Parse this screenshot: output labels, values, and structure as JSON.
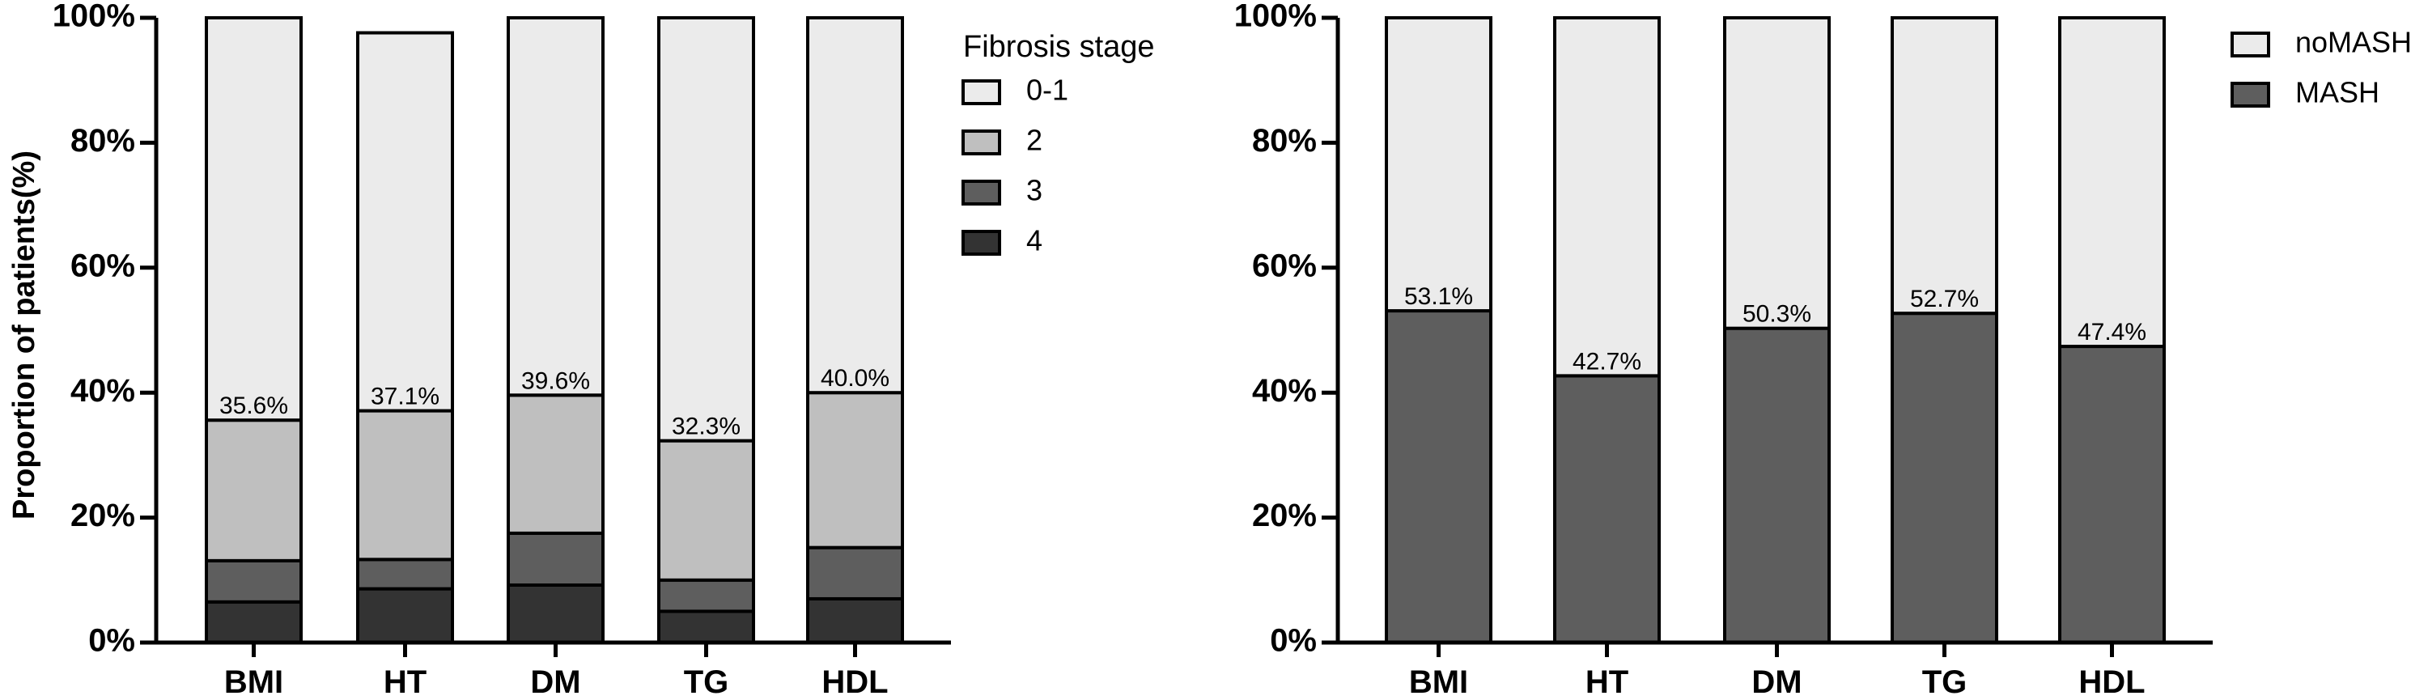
{
  "chart_data": [
    {
      "type": "bar",
      "stacked": true,
      "ylabel": "Proportion of patients(%)",
      "ylim": [
        0,
        100
      ],
      "yticks": [
        "0%",
        "20%",
        "40%",
        "60%",
        "80%",
        "100%"
      ],
      "categories": [
        "BMI",
        "HT",
        "DM",
        "TG",
        "HDL"
      ],
      "legend": {
        "title": "Fibrosis stage",
        "position": "right"
      },
      "series": [
        {
          "name": "4",
          "color": "#333333",
          "values": [
            6.5,
            8.6,
            9.2,
            5.0,
            7.0
          ]
        },
        {
          "name": "3",
          "color": "#5e5e5e",
          "values": [
            6.6,
            4.7,
            8.3,
            5.0,
            8.2
          ]
        },
        {
          "name": "2",
          "color": "#bfbfbf",
          "values": [
            22.5,
            23.8,
            22.1,
            22.3,
            24.8
          ]
        },
        {
          "name": "0-1",
          "color": "#ebebeb",
          "values": [
            64.4,
            60.5,
            60.4,
            67.7,
            60.0
          ]
        }
      ],
      "data_labels": [
        "35.6%",
        "37.1%",
        "39.6%",
        "32.3%",
        "40.0%"
      ]
    },
    {
      "type": "bar",
      "stacked": true,
      "ylabel": "",
      "ylim": [
        0,
        100
      ],
      "yticks": [
        "0%",
        "20%",
        "40%",
        "60%",
        "80%",
        "100%"
      ],
      "categories": [
        "BMI",
        "HT",
        "DM",
        "TG",
        "HDL"
      ],
      "legend": {
        "title": "",
        "position": "right"
      },
      "series": [
        {
          "name": "MASH",
          "color": "#5e5e5e",
          "values": [
            53.1,
            42.7,
            50.3,
            52.7,
            47.4
          ]
        },
        {
          "name": "noMASH",
          "color": "#ebebeb",
          "values": [
            46.9,
            57.3,
            49.7,
            47.3,
            52.6
          ]
        }
      ],
      "data_labels": [
        "53.1%",
        "42.7%",
        "50.3%",
        "52.7%",
        "47.4%"
      ]
    }
  ]
}
